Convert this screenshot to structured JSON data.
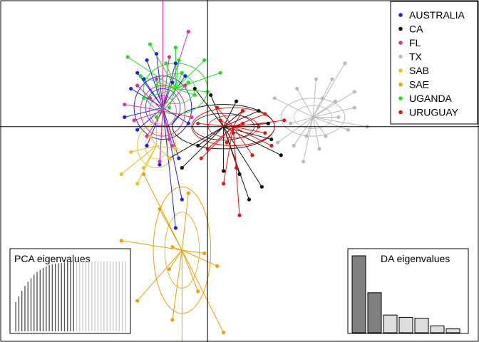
{
  "chart_data": {
    "type": "scatter",
    "subtype": "DAPC scatter with group ellipses and star links",
    "legend_position": "top-right",
    "axes_lines": "cross at origin",
    "grid": false,
    "xlim": [
      -6.5,
      8.5
    ],
    "ylim": [
      -6.8,
      4.0
    ],
    "series": [
      {
        "name": "AUSTRALIA",
        "color": "#2222dd",
        "centroid": [
          -1.4,
          0.6
        ],
        "ellipse": {
          "rx": 0.9,
          "ry": 1.0,
          "angle": 0
        },
        "points": [
          [
            -1.6,
            2.3
          ],
          [
            -1.9,
            2.1
          ],
          [
            -2.2,
            1.7
          ],
          [
            -1.0,
            2.0
          ],
          [
            -2.4,
            1.2
          ],
          [
            -2.6,
            0.3
          ],
          [
            -1.1,
            1.4
          ],
          [
            -0.6,
            0.1
          ],
          [
            -2.2,
            -0.1
          ],
          [
            -1.9,
            -0.6
          ],
          [
            -0.9,
            -1.0
          ],
          [
            -1.5,
            -1.2
          ],
          [
            -0.8,
            -2.3
          ],
          [
            -1.0,
            -3.2
          ],
          [
            -2.0,
            1.5
          ],
          [
            -0.7,
            1.6
          ]
        ]
      },
      {
        "name": "CA",
        "color": "#111111",
        "centroid": [
          0.5,
          0.0
        ],
        "ellipse": {
          "rx": 1.6,
          "ry": 0.7,
          "angle": 0
        },
        "points": [
          [
            -0.4,
            1.2
          ],
          [
            0.1,
            1.0
          ],
          [
            0.9,
            0.8
          ],
          [
            1.6,
            0.5
          ],
          [
            1.9,
            0.1
          ],
          [
            2.0,
            -0.4
          ],
          [
            1.0,
            -1.5
          ],
          [
            1.7,
            -1.9
          ],
          [
            -1.2,
            -1.0
          ],
          [
            -0.8,
            -1.3
          ],
          [
            0.5,
            -1.4
          ],
          [
            2.3,
            -0.9
          ],
          [
            1.1,
            0.5
          ],
          [
            -0.3,
            -0.6
          ],
          [
            1.3,
            -2.3
          ]
        ]
      },
      {
        "name": "FL",
        "color": "#dd3399",
        "centroid": [
          -1.4,
          0.5
        ],
        "ellipse": {
          "rx": 0.7,
          "ry": 0.8,
          "angle": 0
        },
        "points": [
          [
            -1.4,
            4.1
          ],
          [
            -0.6,
            3.0
          ],
          [
            -1.2,
            2.2
          ],
          [
            -1.6,
            1.5
          ],
          [
            -2.2,
            1.3
          ],
          [
            -2.3,
            0.2
          ],
          [
            -0.7,
            1.3
          ],
          [
            -1.9,
            -0.3
          ],
          [
            -1.1,
            -0.6
          ],
          [
            -0.5,
            0.3
          ],
          [
            -1.8,
            0.9
          ],
          [
            -1.5,
            -1.1
          ],
          [
            -2.6,
            0.7
          ],
          [
            -1.2,
            -0.4
          ]
        ]
      },
      {
        "name": "TX",
        "color": "#bbbbbb",
        "centroid": [
          3.3,
          0.3
        ],
        "ellipse": {
          "rx": 1.0,
          "ry": 0.6,
          "angle": 0
        },
        "points": [
          [
            4.3,
            2.0
          ],
          [
            3.9,
            1.5
          ],
          [
            4.6,
            1.1
          ],
          [
            2.8,
            1.2
          ],
          [
            2.1,
            0.9
          ],
          [
            3.6,
            0.9
          ],
          [
            4.1,
            0.3
          ],
          [
            5.0,
            0.0
          ],
          [
            4.4,
            -0.1
          ],
          [
            3.5,
            -0.7
          ],
          [
            2.7,
            -0.6
          ],
          [
            2.2,
            -0.5
          ],
          [
            3.1,
            -0.3
          ],
          [
            3.0,
            -1.1
          ],
          [
            4.6,
            0.6
          ],
          [
            2.6,
            0.1
          ],
          [
            3.7,
            -0.3
          ],
          [
            3.4,
            1.5
          ],
          [
            4.0,
            0.8
          ]
        ]
      },
      {
        "name": "SAB",
        "color": "#f0c020",
        "centroid": [
          -1.6,
          -0.6
        ],
        "ellipse": {
          "rx": 0.6,
          "ry": 0.7,
          "angle": 0
        },
        "points": [
          [
            -1.8,
            -0.3
          ],
          [
            -2.0,
            -1.3
          ],
          [
            -2.7,
            -1.5
          ],
          [
            -2.2,
            -1.8
          ],
          [
            -1.2,
            -1.0
          ],
          [
            -1.6,
            0.3
          ],
          [
            -1.0,
            -0.7
          ],
          [
            -2.4,
            -0.8
          ]
        ]
      },
      {
        "name": "SAE",
        "color": "#f0a000",
        "centroid": [
          -0.8,
          -3.9
        ],
        "ellipse": {
          "rx": 0.9,
          "ry": 2.0,
          "angle": 0
        },
        "points": [
          [
            -2.7,
            -3.6
          ],
          [
            -2.2,
            -5.5
          ],
          [
            -1.1,
            -6.1
          ],
          [
            -0.8,
            -7.0
          ],
          [
            -0.1,
            -4.0
          ],
          [
            0.5,
            -6.5
          ],
          [
            -1.5,
            -2.6
          ],
          [
            -2.0,
            -1.5
          ],
          [
            -1.2,
            -4.5
          ],
          [
            -0.3,
            -5.2
          ],
          [
            -0.6,
            -2.1
          ],
          [
            -1.1,
            -3.8
          ],
          [
            0.3,
            -4.4
          ]
        ]
      },
      {
        "name": "UGANDA",
        "color": "#22dd22",
        "centroid": [
          -1.0,
          1.2
        ],
        "ellipse": {
          "rx": 1.0,
          "ry": 0.8,
          "angle": 0
        },
        "points": [
          [
            -2.5,
            2.2
          ],
          [
            -1.8,
            2.6
          ],
          [
            -1.0,
            2.5
          ],
          [
            -0.1,
            2.1
          ],
          [
            0.4,
            1.7
          ],
          [
            -1.3,
            2.0
          ],
          [
            -0.8,
            1.7
          ],
          [
            -1.6,
            1.3
          ],
          [
            -0.4,
            1.0
          ],
          [
            -2.0,
            0.9
          ],
          [
            -1.2,
            0.6
          ],
          [
            -0.6,
            1.4
          ],
          [
            -1.6,
            0.3
          ],
          [
            -2.1,
            1.6
          ],
          [
            -0.9,
            2.1
          ],
          [
            0.0,
            1.1
          ]
        ]
      },
      {
        "name": "URUGUAY",
        "color": "#ee1111",
        "centroid": [
          0.8,
          0.0
        ],
        "ellipse": {
          "rx": 1.3,
          "ry": 0.6,
          "angle": 0
        },
        "points": [
          [
            0.3,
            0.6
          ],
          [
            1.1,
            0.5
          ],
          [
            1.8,
            0.4
          ],
          [
            2.4,
            0.2
          ],
          [
            1.8,
            -0.2
          ],
          [
            0.6,
            -0.5
          ],
          [
            0.0,
            -0.7
          ],
          [
            1.4,
            -0.9
          ],
          [
            0.9,
            -1.3
          ],
          [
            0.5,
            -1.8
          ],
          [
            1.0,
            -2.8
          ],
          [
            -0.2,
            -1.0
          ],
          [
            1.1,
            0.1
          ],
          [
            0.4,
            0.2
          ],
          [
            2.0,
            -0.6
          ],
          [
            0.8,
            -0.2
          ],
          [
            -0.3,
            0.1
          ],
          [
            1.6,
            0.0
          ]
        ]
      }
    ],
    "insets": {
      "pca": {
        "title": "PCA eigenvalues",
        "position": "bottom-left",
        "values": [
          4.2,
          5.0,
          5.8,
          6.5,
          7.1,
          7.6,
          8.1,
          8.5,
          8.8,
          9.1,
          9.3,
          9.5,
          9.6,
          9.7,
          9.75,
          9.8,
          9.85,
          9.88,
          9.9,
          9.92,
          9.94,
          9.96,
          9.97,
          9.98,
          9.99,
          10,
          10,
          10,
          10,
          10,
          10,
          10,
          10,
          10,
          10,
          10,
          10
        ],
        "retained": 20,
        "retained_color": "#555555",
        "other_color": "#cccccc"
      },
      "da": {
        "title": "DA eigenvalues",
        "position": "bottom-right",
        "values": [
          10,
          5.2,
          2.3,
          2.0,
          1.9,
          0.9,
          0.5
        ],
        "retained": 2,
        "retained_color": "#808080",
        "other_color": "#dddddd"
      }
    }
  }
}
